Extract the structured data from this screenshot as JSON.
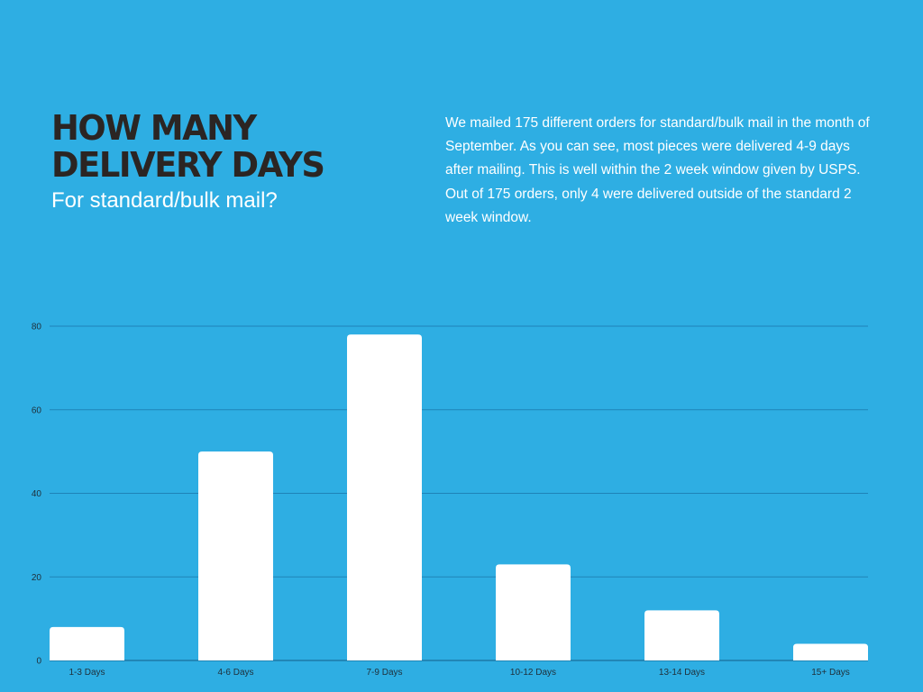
{
  "header": {
    "title_lines": [
      "HOW MANY",
      "DELIVERY DAYS"
    ],
    "subtitle": "For standard/bulk mail?"
  },
  "description": "We mailed 175 different orders for standard/bulk mail in the month of September. As you can see, most pieces were delivered 4-9 days after mailing. This is well within the 2 week window given by USPS. Out of 175 orders, only 4 were delivered outside of the standard 2 week window.",
  "colors": {
    "background": "#2eaee3",
    "bars": "#ffffff",
    "title": "#2b2523",
    "gridline": "#1f83b8"
  },
  "chart_data": {
    "type": "bar",
    "title": "",
    "xlabel": "",
    "ylabel": "",
    "categories": [
      "1-3 Days",
      "4-6 Days",
      "7-9 Days",
      "10-12 Days",
      "13-14 Days",
      "15+ Days"
    ],
    "values": [
      8,
      50,
      78,
      23,
      12,
      4
    ],
    "ylim": [
      0,
      80
    ],
    "yticks": [
      0,
      20,
      40,
      60,
      80
    ],
    "grid": true,
    "legend": "none"
  }
}
